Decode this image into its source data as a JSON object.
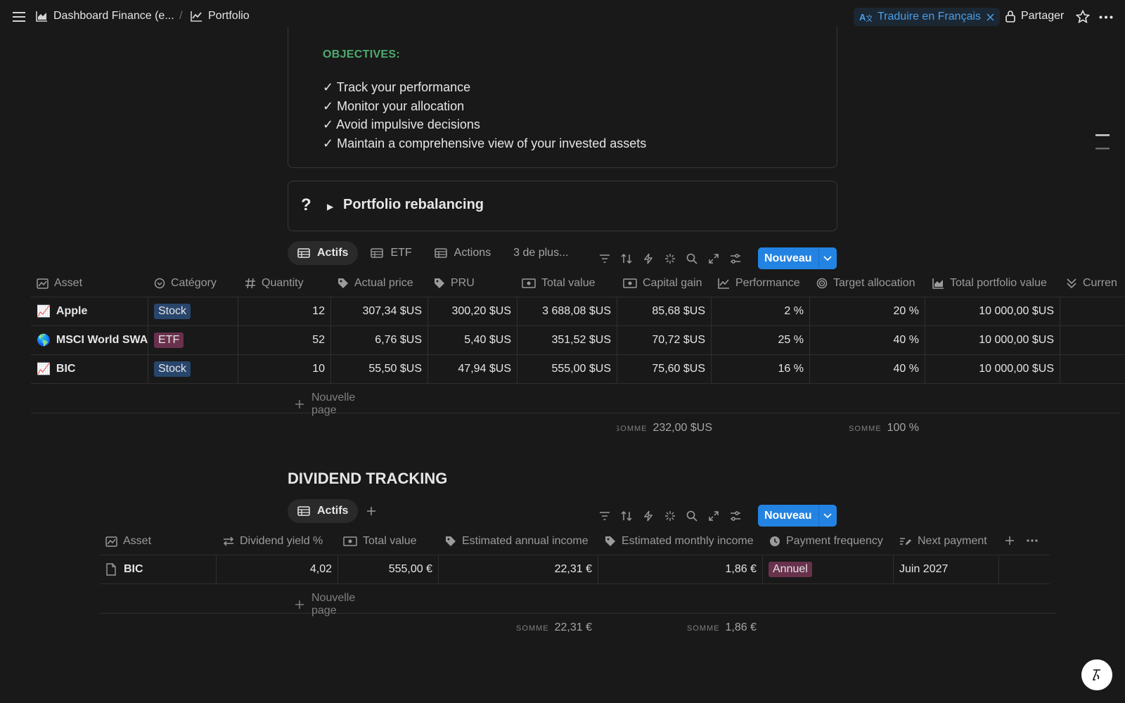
{
  "topbar": {
    "menu_icon": "hamburger-icon",
    "breadcrumb": [
      {
        "icon": "chart-area-icon",
        "label": "Dashboard Finance (e..."
      },
      {
        "icon": "chart-line-icon",
        "label": "Portfolio"
      }
    ],
    "separator": "/",
    "translate_label": "Traduire en Français",
    "share_label": "Partager"
  },
  "objectives": {
    "title": "OBJECTIVES:",
    "items": [
      "✓ Track your performance",
      "✓ Monitor your allocation",
      "✓ Avoid impulsive decisions",
      "✓ Maintain a comprehensive view of your invested assets"
    ]
  },
  "rebalancing": {
    "icon_text": "?",
    "arrow": "▶",
    "title": "Portfolio rebalancing"
  },
  "portfolio_view": {
    "tabs": [
      "Actifs",
      "ETF",
      "Actions"
    ],
    "more_label": "3 de plus...",
    "new_label": "Nouveau",
    "headers": [
      "Asset",
      "Catégory",
      "Quantity",
      "Actual price",
      "PRU",
      "Total value",
      "Capital gain",
      "Performance",
      "Target allocation",
      "Total portfolio value",
      "Curren"
    ],
    "rows": [
      {
        "emoji": "📈",
        "asset": "Apple",
        "category": "Stock",
        "quantity": "12",
        "price": "307,34 $US",
        "pru": "300,20 $US",
        "total": "3 688,08 $US",
        "gain": "85,68 $US",
        "performance": "2 %",
        "target": "20 %",
        "portfolio": "10 000,00 $US"
      },
      {
        "emoji": "🌎",
        "asset": "MSCI World SWAP",
        "category": "ETF",
        "quantity": "52",
        "price": "6,76 $US",
        "pru": "5,40 $US",
        "total": "351,52 $US",
        "gain": "70,72 $US",
        "performance": "25 %",
        "target": "40 %",
        "portfolio": "10 000,00 $US"
      },
      {
        "emoji": "📈",
        "asset": "BIC",
        "category": "Stock",
        "quantity": "10",
        "price": "55,50 $US",
        "pru": "47,94 $US",
        "total": "555,00 $US",
        "gain": "75,60 $US",
        "performance": "16 %",
        "target": "40 %",
        "portfolio": "10 000,00 $US"
      }
    ],
    "new_page_label": "Nouvelle page",
    "sum_label": "SOMME",
    "sum_gain": "232,00 $US",
    "sum_target": "100 %"
  },
  "dividend": {
    "title": "DIVIDEND TRACKING",
    "tab": "Actifs",
    "new_label": "Nouveau",
    "headers": [
      "Asset",
      "Dividend yield %",
      "Total value",
      "Estimated annual income",
      "Estimated monthly income",
      "Payment frequency",
      "Next payment"
    ],
    "rows": [
      {
        "asset": "BIC",
        "yield": "4,02",
        "total": "555,00 €",
        "annual": "22,31 €",
        "monthly": "1,86 €",
        "frequency": "Annuel",
        "next": "Juin 2027"
      }
    ],
    "new_page_label": "Nouvelle page",
    "sum_label": "SOMME",
    "sum_annual": "22,31 €",
    "sum_monthly": "1,86 €"
  },
  "colors": {
    "background": "#191919",
    "accent": "#2383e2",
    "objectives_green": "#4dab6f",
    "tag_stock": "#28456c",
    "tag_etf": "#69314c"
  }
}
